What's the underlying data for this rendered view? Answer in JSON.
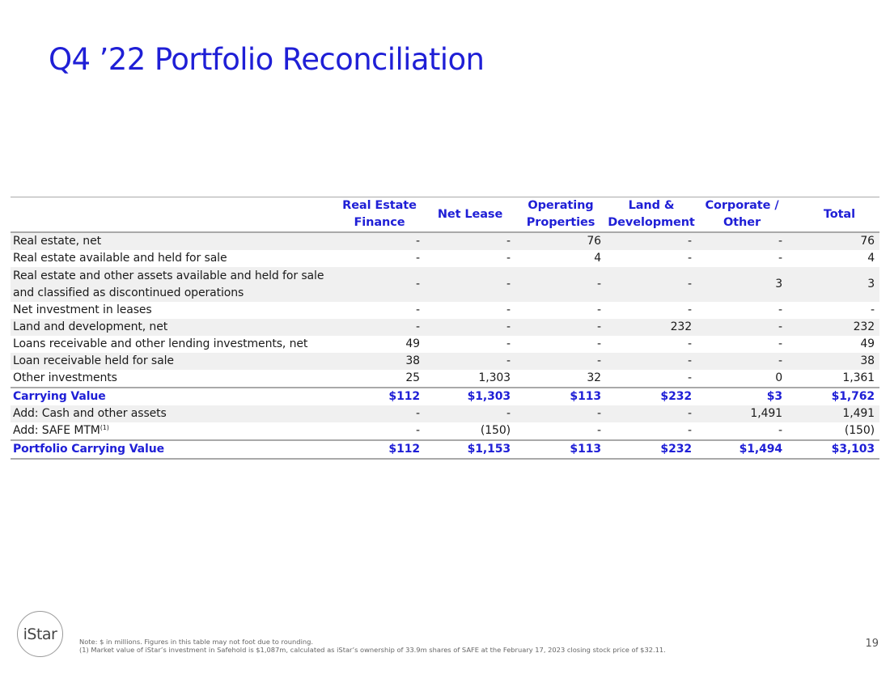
{
  "title": "Q4 ’22 Portfolio Reconciliation",
  "table": {
    "headers": [
      {
        "line1": "Real Estate",
        "line2": "Finance"
      },
      {
        "line1": "Net Lease",
        "line2": ""
      },
      {
        "line1": "Operating",
        "line2": "Properties"
      },
      {
        "line1": "Land &",
        "line2": "Development"
      },
      {
        "line1": "Corporate /",
        "line2": "Other"
      },
      {
        "line1": "Total",
        "line2": ""
      }
    ],
    "rows": [
      {
        "label": "Real estate, net",
        "values": [
          "-",
          "-",
          "76",
          "-",
          "-",
          "76"
        ]
      },
      {
        "label": "Real estate available and held for sale",
        "values": [
          "-",
          "-",
          "4",
          "-",
          "-",
          "4"
        ]
      },
      {
        "label": "Real estate and other assets available and held for sale and classified as discontinued operations",
        "values": [
          "-",
          "-",
          "-",
          "-",
          "3",
          "3"
        ]
      },
      {
        "label": "Net investment in leases",
        "values": [
          "-",
          "-",
          "-",
          "-",
          "-",
          "-"
        ]
      },
      {
        "label": "Land and development, net",
        "values": [
          "-",
          "-",
          "-",
          "232",
          "-",
          "232"
        ]
      },
      {
        "label": "Loans receivable and other lending investments, net",
        "values": [
          "49",
          "-",
          "-",
          "-",
          "-",
          "49"
        ]
      },
      {
        "label": "Loan receivable held for sale",
        "values": [
          "38",
          "-",
          "-",
          "-",
          "-",
          "38"
        ]
      },
      {
        "label": "Other investments",
        "values": [
          "25",
          "1,303",
          "32",
          "-",
          "0",
          "1,361"
        ]
      },
      {
        "label": "Carrying Value",
        "values": [
          "$112",
          "$1,303",
          "$113",
          "$232",
          "$3",
          "$1,762"
        ]
      },
      {
        "label": "Add: Cash and other assets",
        "values": [
          "-",
          "-",
          "-",
          "-",
          "1,491",
          "1,491"
        ]
      },
      {
        "label": "Add: SAFE MTM",
        "footnote_ref": "(1)",
        "values": [
          "-",
          "(150)",
          "-",
          "-",
          "-",
          "(150)"
        ]
      },
      {
        "label": "Portfolio Carrying Value",
        "values": [
          "$112",
          "$1,153",
          "$113",
          "$232",
          "$1,494",
          "$3,103"
        ]
      }
    ]
  },
  "logo_text": "iStar",
  "notes": {
    "line1": "Note: $ in millions. Figures in this table may not foot due to rounding.",
    "line2": "(1) Market value of iStar’s investment in Safehold is $1,087m, calculated as iStar’s ownership of 33.9m shares of SAFE at the February 17, 2023 closing stock price of $32.11."
  },
  "page_number": "19",
  "colors": {
    "accent": "#1f1fd6",
    "row_shade": "#f0f0f0",
    "rule": "#a9a9a9"
  }
}
